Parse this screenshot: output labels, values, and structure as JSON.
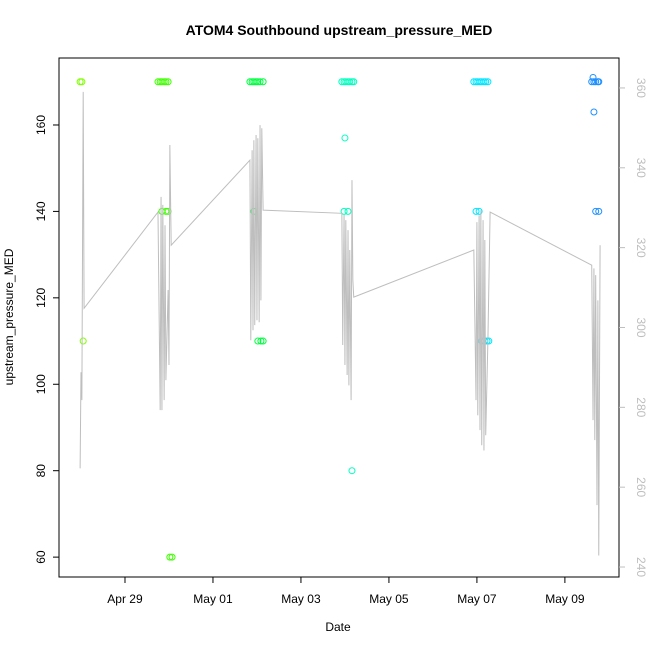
{
  "chart_data": {
    "type": "scatter",
    "title": "ATOM4 Southbound upstream_pressure_MED",
    "x_label": "Date",
    "y_label": "upstream_pressure_MED",
    "xlim": [
      27.5,
      40.23
    ],
    "xticks": [
      {
        "value": 29,
        "label": "Apr 29"
      },
      {
        "value": 31,
        "label": "May 01"
      },
      {
        "value": 33,
        "label": "May 03"
      },
      {
        "value": 35,
        "label": "May 05"
      },
      {
        "value": 37,
        "label": "May 07"
      },
      {
        "value": 39,
        "label": "May 09"
      }
    ],
    "ylim": [
      55.4,
      175.5
    ],
    "yticks": [
      60,
      80,
      100,
      120,
      140,
      160
    ],
    "y2lim": [
      237.5,
      367.5
    ],
    "y2ticks": [
      240,
      260,
      280,
      300,
      320,
      340,
      360
    ],
    "y2_color": "#bebebe",
    "series": [
      {
        "color": "#80ff00",
        "x": [
          27.98,
          28.02,
          28.05
        ],
        "values": [
          170,
          170,
          110
        ]
      },
      {
        "color": "#40ff00",
        "x": [
          29.75,
          29.8,
          29.84,
          29.89,
          29.93,
          29.98,
          29.84,
          29.93,
          29.98,
          30.02,
          30.07
        ],
        "values": [
          170,
          170,
          170,
          170,
          170,
          170,
          140,
          140,
          140,
          60,
          60
        ]
      },
      {
        "color": "#00ff40",
        "x": [
          31.84,
          31.89,
          31.93,
          31.98,
          32.02,
          32.07,
          32.14,
          31.93,
          32.02,
          32.09,
          32.14
        ],
        "values": [
          170,
          170,
          170,
          170,
          170,
          170,
          170,
          140,
          110,
          110,
          110
        ]
      },
      {
        "color": "#00ffbf",
        "x": [
          33.93,
          33.98,
          34.02,
          34.07,
          34.11,
          34.16,
          34.2,
          34.0,
          33.98,
          34.07,
          34.16
        ],
        "values": [
          170,
          170,
          170,
          170,
          170,
          170,
          170,
          157,
          140,
          140,
          80
        ]
      },
      {
        "color": "#00e5ff",
        "x": [
          36.93,
          36.98,
          37.02,
          37.07,
          37.11,
          37.16,
          37.2,
          37.25,
          36.98,
          37.05,
          37.11,
          37.18,
          37.23,
          37.27
        ],
        "values": [
          170,
          170,
          170,
          170,
          170,
          170,
          170,
          170,
          140,
          140,
          110,
          110,
          110,
          110
        ]
      },
      {
        "color": "#1e90ff",
        "x": [
          39.64,
          39.61,
          39.66,
          39.7,
          39.75,
          39.77,
          39.66,
          39.7,
          39.77
        ],
        "values": [
          171,
          170,
          170,
          170,
          170,
          170,
          163,
          140,
          140
        ]
      },
      {
        "type": "line",
        "axis": "y2",
        "color": "#bebebe",
        "x": [
          27.98,
          28.0,
          28.02,
          28.05,
          28.07,
          29.75,
          29.8,
          29.82,
          29.84,
          29.86,
          29.89,
          29.91,
          29.93,
          29.98,
          30.0,
          30.02,
          30.05,
          31.84,
          31.86,
          31.89,
          31.91,
          31.93,
          31.95,
          31.98,
          32.0,
          32.02,
          32.05,
          32.07,
          32.09,
          32.11,
          32.14,
          33.93,
          33.95,
          33.98,
          34.0,
          34.02,
          34.05,
          34.07,
          34.09,
          34.11,
          34.14,
          34.16,
          34.18,
          34.2,
          36.93,
          36.98,
          37.0,
          37.02,
          37.05,
          37.07,
          37.09,
          37.11,
          37.14,
          37.16,
          37.18,
          37.2,
          37.25,
          37.3,
          39.61,
          39.64,
          39.66,
          39.68,
          39.7,
          39.73,
          39.75,
          39.77,
          39.8
        ],
        "values": [
          264.7,
          288.8,
          281.8,
          359.0,
          304.8,
          328.9,
          279.3,
          332.7,
          279.3,
          330.7,
          281.8,
          325.6,
          286.8,
          309.4,
          290.6,
          345.7,
          320.6,
          341.9,
          296.8,
          344.4,
          299.3,
          346.9,
          300.6,
          348.2,
          301.8,
          347.4,
          301.3,
          350.7,
          306.8,
          349.9,
          329.4,
          328.6,
          295.6,
          328.2,
          290.6,
          326.9,
          288.1,
          324.4,
          285.5,
          319.4,
          281.8,
          336.9,
          311.9,
          307.6,
          319.4,
          281.8,
          326.4,
          278.0,
          328.1,
          274.3,
          329.4,
          270.5,
          326.9,
          269.2,
          321.9,
          273.0,
          296.8,
          328.9,
          315.6,
          276.8,
          314.8,
          271.8,
          313.1,
          255.5,
          306.8,
          242.9,
          320.6
        ]
      }
    ]
  }
}
